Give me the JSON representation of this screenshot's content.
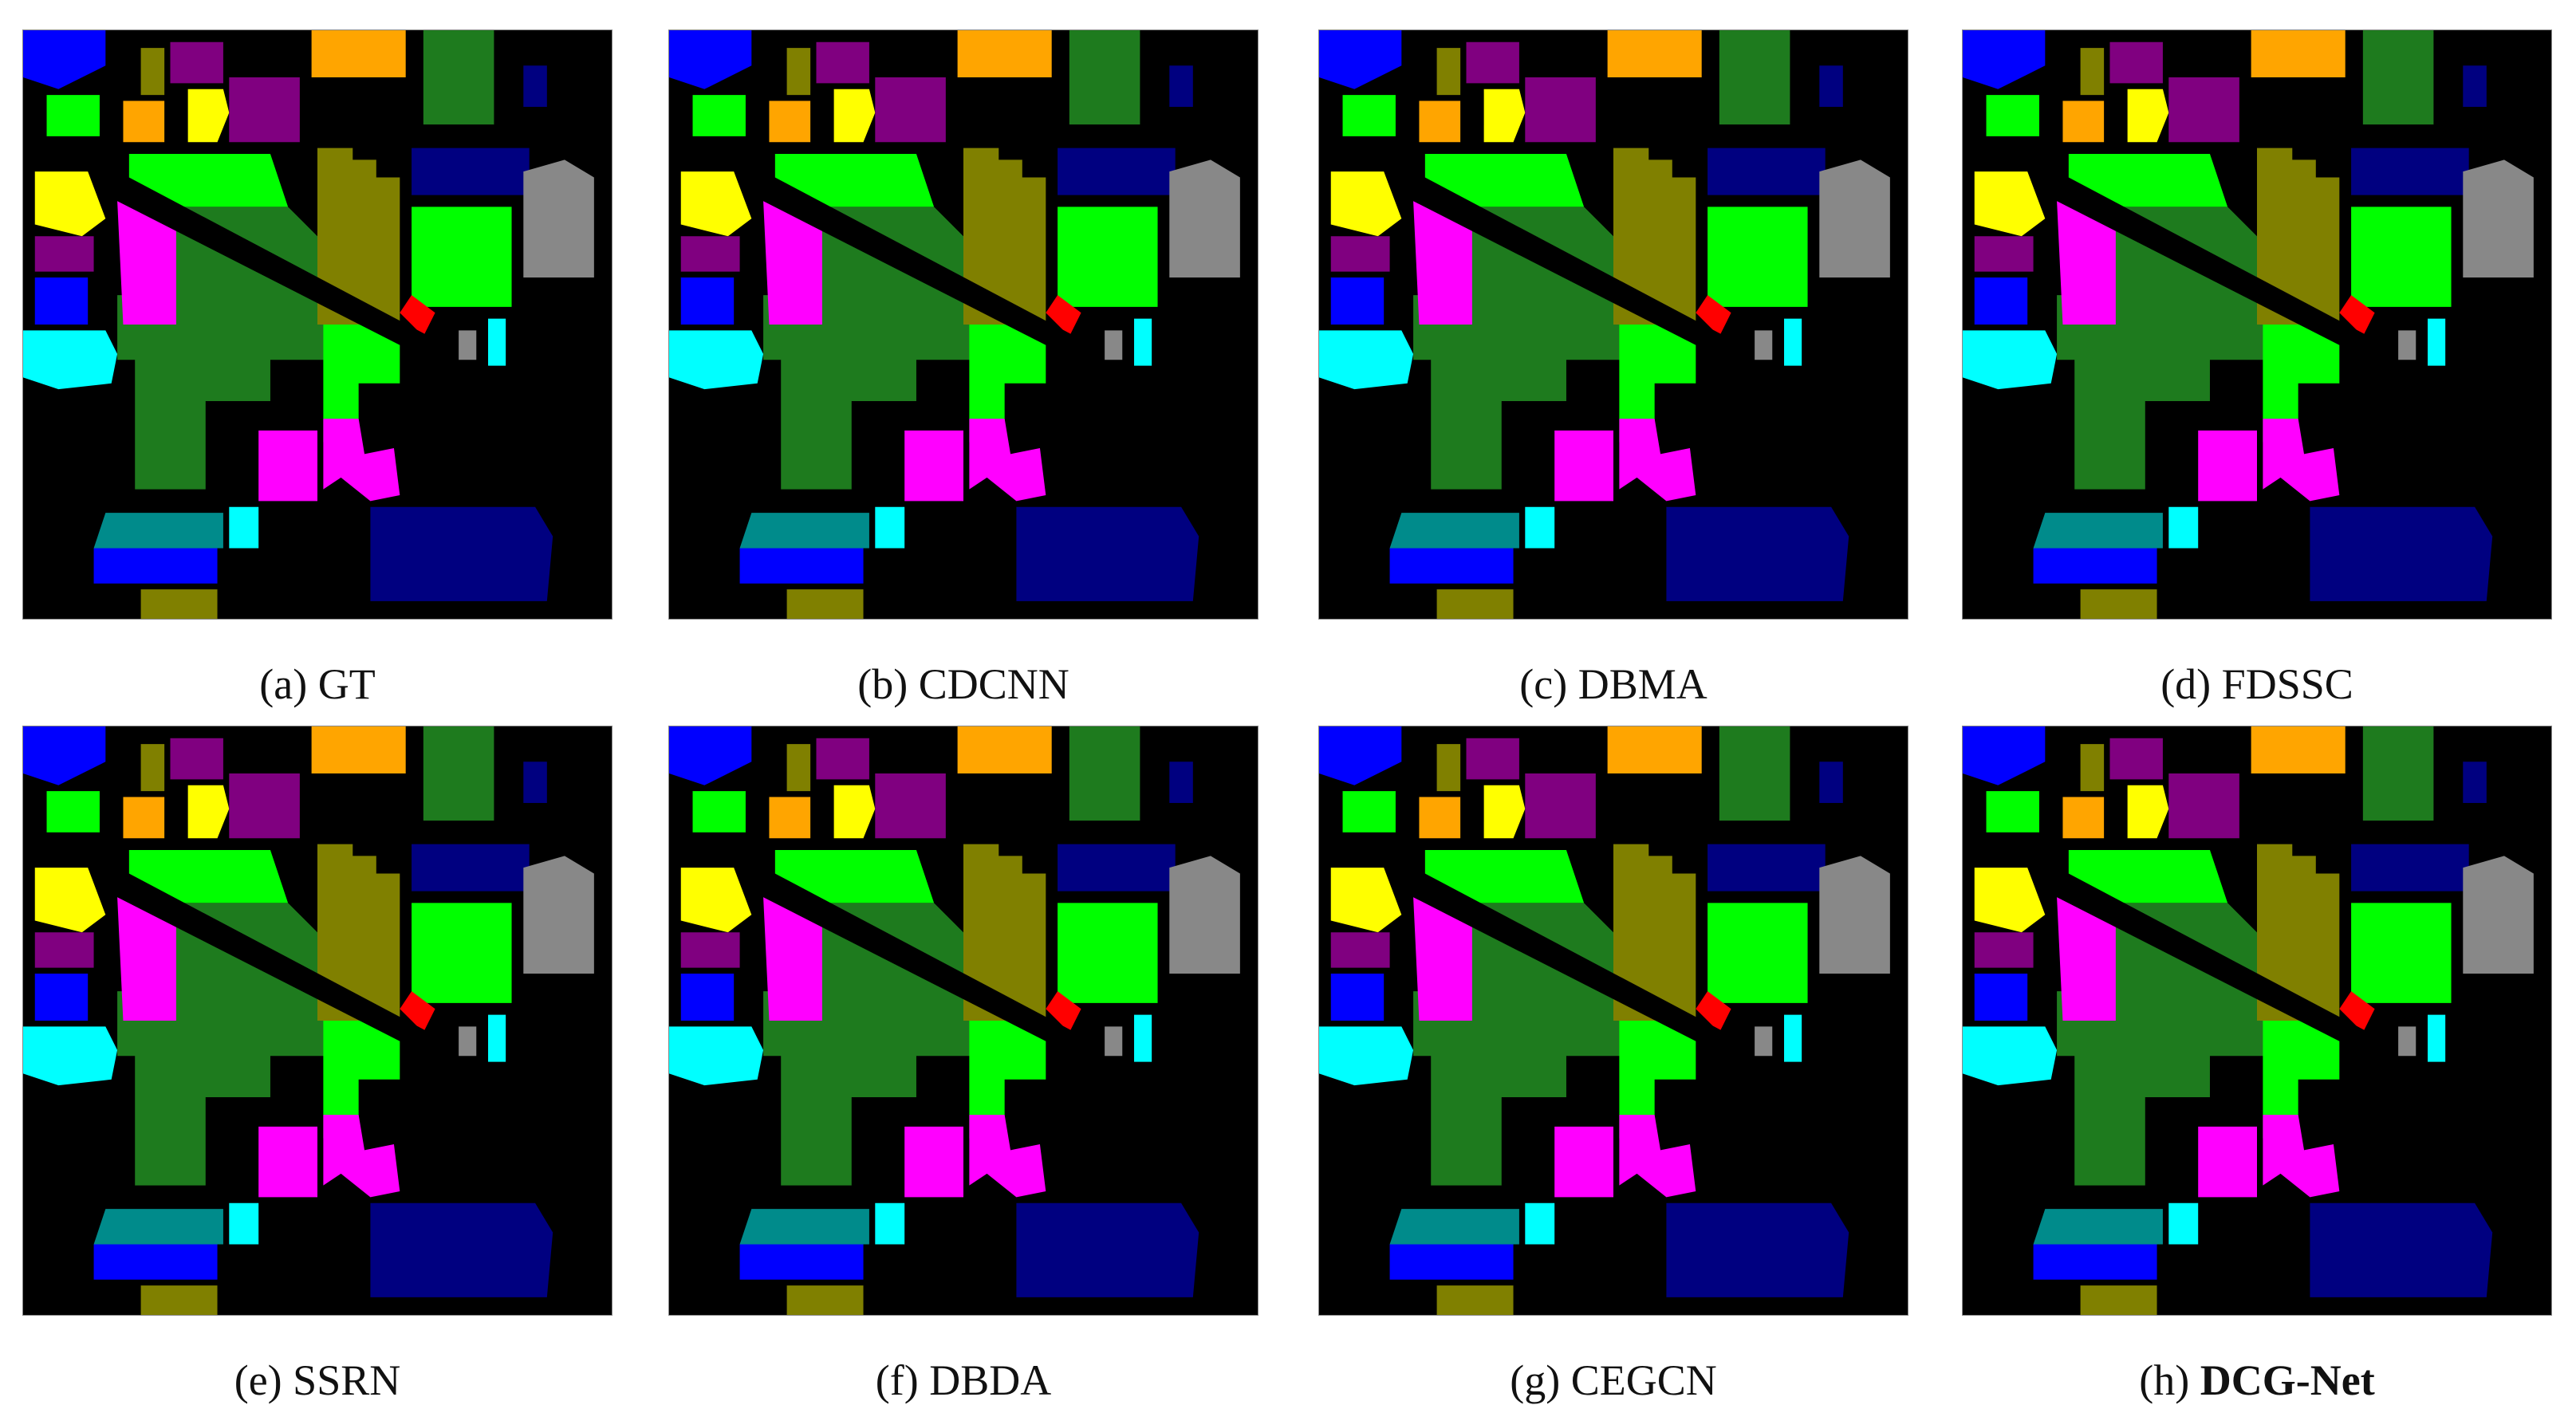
{
  "figure": {
    "panels": [
      {
        "label": "(a) GT",
        "method": ""
      },
      {
        "label": "(b) CDCNN",
        "method": ""
      },
      {
        "label": "(c) DBMA",
        "method": ""
      },
      {
        "label": "(d) FDSSC",
        "method": ""
      },
      {
        "label": "(e) SSRN",
        "method": ""
      },
      {
        "label": "(f) DBDA",
        "method": ""
      },
      {
        "label": "(g) CEGCN",
        "method": ""
      },
      {
        "label": "(h) ",
        "method": "DCG-Net"
      }
    ]
  },
  "colors": {
    "background": "#000000",
    "blue": "#0000ff",
    "navy": "#000080",
    "green": "#1e7b1e",
    "lime": "#00ff00",
    "purple": "#800080",
    "orange": "#ffa500",
    "yellow": "#ffff00",
    "olive": "#808000",
    "magenta": "#ff00ff",
    "cyan": "#00ffff",
    "teal": "#008b8b",
    "gray": "#888888",
    "red": "#ff0000"
  }
}
